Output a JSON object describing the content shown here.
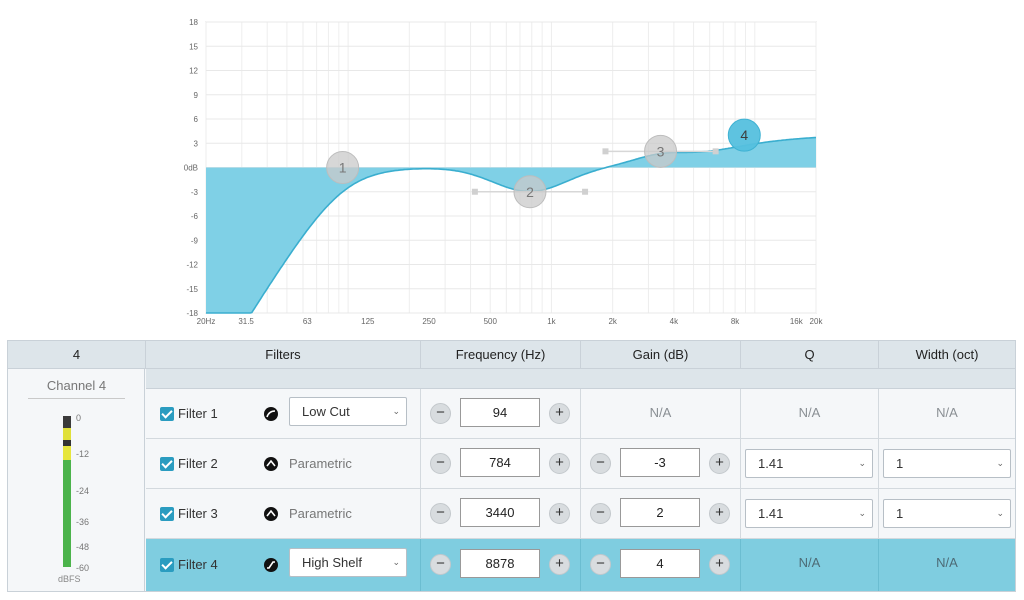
{
  "chart": {
    "y_ticks": [
      "18",
      "15",
      "12",
      "9",
      "6",
      "3",
      "0dB",
      "-3",
      "-6",
      "-9",
      "-12",
      "-15",
      "-18"
    ],
    "x_ticks": [
      "20Hz",
      "31.5",
      "63",
      "125",
      "250",
      "500",
      "1k",
      "2k",
      "4k",
      "8k",
      "16k",
      "20k"
    ],
    "nodes": [
      {
        "id": "1",
        "freq": 94,
        "gain": 0
      },
      {
        "id": "2",
        "freq": 784,
        "gain": -3
      },
      {
        "id": "3",
        "freq": 3440,
        "gain": 2
      },
      {
        "id": "4",
        "freq": 8878,
        "gain": 4
      }
    ],
    "colors": {
      "fill": "#7fd0e6",
      "line": "#3aaecf",
      "node": "#c9c9c9",
      "node_active": "#55c0de"
    }
  },
  "table": {
    "headers": {
      "channel": "4",
      "filters": "Filters",
      "frequency": "Frequency (Hz)",
      "gain": "Gain (dB)",
      "q": "Q",
      "width": "Width (oct)"
    },
    "channel_name": "Channel 4",
    "meter": {
      "ticks": [
        "0",
        "-12",
        "-24",
        "-36",
        "-48",
        "-60"
      ],
      "unit": "dBFS"
    },
    "minus_glyph": "−",
    "plus_glyph": "+",
    "rows": [
      {
        "label": "Filter 1",
        "enabled": true,
        "type": "Low Cut",
        "type_is_select": true,
        "frequency": "94",
        "gain": "N/A",
        "q": "N/A",
        "width": "N/A",
        "icon": "low-cut-icon"
      },
      {
        "label": "Filter 2",
        "enabled": true,
        "type": "Parametric",
        "type_is_select": false,
        "frequency": "784",
        "gain": "-3",
        "q": "1.41",
        "width": "1",
        "icon": "parametric-icon"
      },
      {
        "label": "Filter 3",
        "enabled": true,
        "type": "Parametric",
        "type_is_select": false,
        "frequency": "3440",
        "gain": "2",
        "q": "1.41",
        "width": "1",
        "icon": "parametric-icon"
      },
      {
        "label": "Filter 4",
        "enabled": true,
        "type": "High Shelf",
        "type_is_select": true,
        "frequency": "8878",
        "gain": "4",
        "q": "N/A",
        "width": "N/A",
        "icon": "high-shelf-icon",
        "active": true
      }
    ]
  }
}
